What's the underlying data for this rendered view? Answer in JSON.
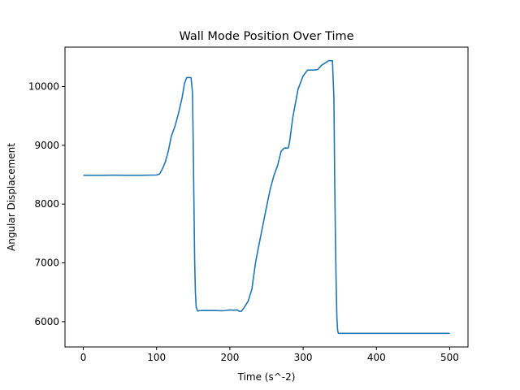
{
  "chart_data": {
    "type": "line",
    "title": "Wall Mode Position Over Time",
    "xlabel": "Time (s^-2)",
    "ylabel": "Angular Displacement",
    "xlim": [
      -25,
      525
    ],
    "ylim": [
      5570,
      10670
    ],
    "xticks": [
      0,
      100,
      200,
      300,
      400,
      500
    ],
    "yticks": [
      6000,
      7000,
      8000,
      9000,
      10000
    ],
    "grid": false,
    "series": [
      {
        "color": "#1f77b4",
        "x": [
          0,
          20,
          40,
          60,
          80,
          100,
          104,
          108,
          112,
          116,
          120,
          125,
          130,
          135,
          138,
          141,
          144,
          147,
          149,
          150,
          151,
          152,
          153,
          154,
          156,
          160,
          170,
          180,
          190,
          195,
          200,
          205,
          210,
          213,
          216,
          220,
          225,
          230,
          235,
          238,
          242,
          246,
          250,
          255,
          260,
          265,
          270,
          274,
          276,
          278,
          280,
          282,
          284,
          286,
          290,
          293,
          296,
          300,
          303,
          306,
          310,
          315,
          320,
          325,
          330,
          335,
          338,
          340,
          342,
          343,
          344,
          345,
          346,
          347,
          348,
          349,
          350,
          355,
          360,
          370,
          380,
          400,
          420,
          440,
          460,
          480,
          500
        ],
        "y": [
          8490,
          8490,
          8492,
          8490,
          8490,
          8495,
          8510,
          8600,
          8720,
          8900,
          9150,
          9320,
          9550,
          9820,
          10050,
          10150,
          10155,
          10150,
          9900,
          9000,
          8000,
          7000,
          6500,
          6250,
          6180,
          6190,
          6190,
          6190,
          6185,
          6190,
          6200,
          6195,
          6200,
          6175,
          6180,
          6250,
          6350,
          6550,
          7000,
          7200,
          7450,
          7700,
          7950,
          8250,
          8480,
          8650,
          8900,
          8950,
          8955,
          8950,
          8960,
          9100,
          9300,
          9480,
          9750,
          9950,
          10050,
          10180,
          10230,
          10280,
          10280,
          10280,
          10290,
          10360,
          10400,
          10440,
          10440,
          10440,
          9800,
          8500,
          7500,
          6700,
          6100,
          5860,
          5800,
          5800,
          5800,
          5800,
          5800,
          5800,
          5800,
          5800,
          5800,
          5800,
          5800,
          5800,
          5800
        ]
      }
    ]
  }
}
